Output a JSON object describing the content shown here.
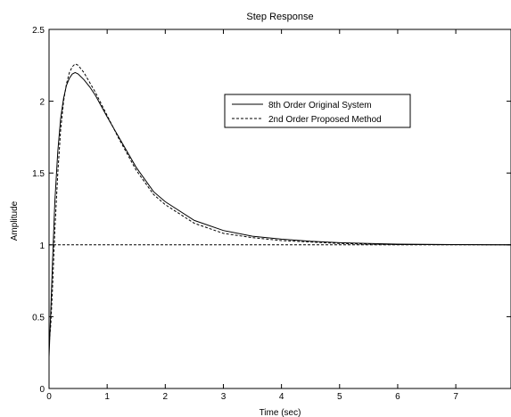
{
  "chart_data": {
    "type": "line",
    "title": "Step Response",
    "xlabel": "Time (sec)",
    "ylabel": "Amplitude",
    "xlim": [
      0,
      7.95
    ],
    "ylim": [
      0,
      2.5
    ],
    "xticks": [
      0,
      1,
      2,
      3,
      4,
      5,
      6,
      7
    ],
    "yticks": [
      0,
      0.5,
      1,
      1.5,
      2,
      2.5
    ],
    "xtick_labels": [
      "0",
      "1",
      "2",
      "3",
      "4",
      "5",
      "6",
      "7"
    ],
    "ytick_labels": [
      "0",
      "0.5",
      "1",
      "1.5",
      "2",
      "2.5"
    ],
    "grid": false,
    "legend_position": "upper-right",
    "reference_line": {
      "y": 1,
      "style": "dashed"
    },
    "series": [
      {
        "name": "8th Order Original System",
        "style": "solid",
        "color": "#000000",
        "x": [
          0,
          0.03,
          0.06,
          0.1,
          0.15,
          0.2,
          0.25,
          0.3,
          0.35,
          0.4,
          0.45,
          0.5,
          0.6,
          0.7,
          0.8,
          1.0,
          1.2,
          1.5,
          1.8,
          2.0,
          2.5,
          3.0,
          3.5,
          4.0,
          4.5,
          5.0,
          5.5,
          6.0,
          7.0,
          7.95
        ],
        "y": [
          0.22,
          0.55,
          0.88,
          1.3,
          1.65,
          1.88,
          2.02,
          2.11,
          2.16,
          2.19,
          2.2,
          2.19,
          2.15,
          2.1,
          2.04,
          1.89,
          1.75,
          1.54,
          1.37,
          1.3,
          1.17,
          1.1,
          1.06,
          1.04,
          1.025,
          1.015,
          1.01,
          1.005,
          1.002,
          1.0
        ]
      },
      {
        "name": "2nd Order Proposed Method",
        "style": "dashed",
        "color": "#000000",
        "x": [
          0,
          0.03,
          0.06,
          0.1,
          0.15,
          0.2,
          0.25,
          0.3,
          0.35,
          0.4,
          0.45,
          0.5,
          0.6,
          0.7,
          0.8,
          1.0,
          1.2,
          1.5,
          1.8,
          2.0,
          2.5,
          3.0,
          3.5,
          4.0,
          4.5,
          5.0,
          5.5,
          6.0,
          7.0,
          7.95
        ],
        "y": [
          0.3,
          0.45,
          0.7,
          1.1,
          1.5,
          1.8,
          2.0,
          2.12,
          2.2,
          2.24,
          2.26,
          2.25,
          2.2,
          2.13,
          2.06,
          1.9,
          1.74,
          1.52,
          1.35,
          1.28,
          1.15,
          1.08,
          1.05,
          1.03,
          1.02,
          1.01,
          1.005,
          1.002,
          1.001,
          1.0
        ]
      }
    ]
  }
}
